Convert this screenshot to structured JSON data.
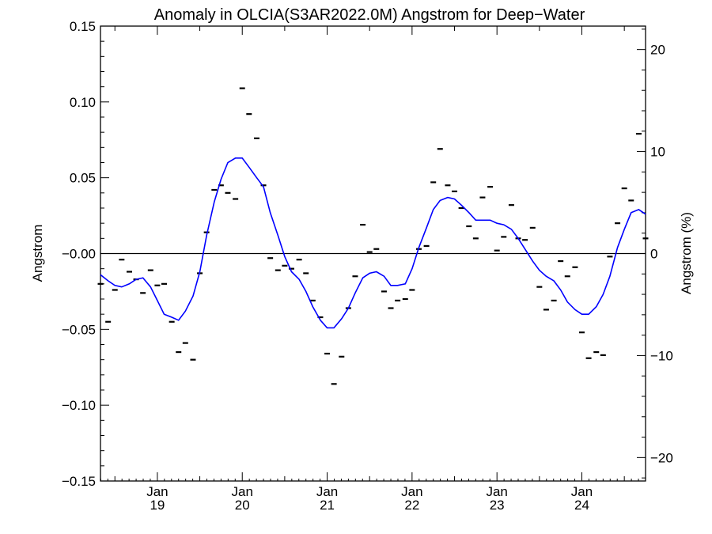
{
  "chart_data": {
    "type": "scatter",
    "title": "Anomaly in OLCIA(S3AR2022.0M) Angstrom for Deep−Water",
    "ylabel": "Angstrom",
    "ylabel_right": "Angstrom (%)",
    "xlim": [
      2018.33,
      2024.75
    ],
    "ylim": [
      -0.15,
      0.15
    ],
    "ylim_right": [
      -22.3,
      22.3
    ],
    "yticks": [
      {
        "value": 0.15,
        "label": "0.15"
      },
      {
        "value": 0.1,
        "label": "0.10"
      },
      {
        "value": 0.05,
        "label": "0.05"
      },
      {
        "value": 0.0,
        "label": "−0.00"
      },
      {
        "value": -0.05,
        "label": "−0.05"
      },
      {
        "value": -0.1,
        "label": "−0.10"
      },
      {
        "value": -0.15,
        "label": "−0.15"
      }
    ],
    "yticks_right": [
      {
        "value": 20,
        "label": "20"
      },
      {
        "value": 10,
        "label": "10"
      },
      {
        "value": 0,
        "label": "0"
      },
      {
        "value": -10,
        "label": "−10"
      },
      {
        "value": -20,
        "label": "−20"
      }
    ],
    "xticks": [
      {
        "value": 2019.0,
        "month": "Jan",
        "year": "19"
      },
      {
        "value": 2020.0,
        "month": "Jan",
        "year": "20"
      },
      {
        "value": 2021.0,
        "month": "Jan",
        "year": "21"
      },
      {
        "value": 2022.0,
        "month": "Jan",
        "year": "22"
      },
      {
        "value": 2023.0,
        "month": "Jan",
        "year": "23"
      },
      {
        "value": 2024.0,
        "month": "Jan",
        "year": "24"
      }
    ],
    "zero_line": 0,
    "monthly_points": {
      "x": [
        2018.33,
        2018.42,
        2018.5,
        2018.58,
        2018.67,
        2018.75,
        2018.83,
        2018.92,
        2019.0,
        2019.08,
        2019.17,
        2019.25,
        2019.33,
        2019.42,
        2019.5,
        2019.58,
        2019.67,
        2019.75,
        2019.83,
        2019.92,
        2020.0,
        2020.08,
        2020.17,
        2020.25,
        2020.33,
        2020.42,
        2020.5,
        2020.58,
        2020.67,
        2020.75,
        2020.83,
        2020.92,
        2021.0,
        2021.08,
        2021.17,
        2021.25,
        2021.33,
        2021.42,
        2021.5,
        2021.58,
        2021.67,
        2021.75,
        2021.83,
        2021.92,
        2022.0,
        2022.08,
        2022.17,
        2022.25,
        2022.33,
        2022.42,
        2022.5,
        2022.58,
        2022.67,
        2022.75,
        2022.83,
        2022.92,
        2023.0,
        2023.08,
        2023.17,
        2023.25,
        2023.33,
        2023.42,
        2023.5,
        2023.58,
        2023.67,
        2023.75,
        2023.83,
        2023.92,
        2024.0,
        2024.08,
        2024.17,
        2024.25,
        2024.33,
        2024.42,
        2024.5,
        2024.58,
        2024.67,
        2024.75
      ],
      "y": [
        -0.02,
        -0.045,
        -0.024,
        -0.004,
        -0.012,
        -0.017,
        -0.026,
        -0.011,
        -0.021,
        -0.02,
        -0.045,
        -0.065,
        -0.059,
        -0.07,
        -0.013,
        0.014,
        0.042,
        0.045,
        0.04,
        0.036,
        0.109,
        0.092,
        0.076,
        0.045,
        -0.003,
        -0.011,
        -0.008,
        -0.01,
        -0.004,
        -0.013,
        -0.031,
        -0.042,
        -0.066,
        -0.086,
        -0.068,
        -0.036,
        -0.015,
        0.019,
        0.001,
        0.003,
        -0.025,
        -0.036,
        -0.031,
        -0.03,
        -0.024,
        0.003,
        0.005,
        0.047,
        0.069,
        0.045,
        0.041,
        0.03,
        0.018,
        0.01,
        0.037,
        0.044,
        0.002,
        0.011,
        0.032,
        0.01,
        0.009,
        0.017,
        -0.022,
        -0.037,
        -0.031,
        -0.005,
        -0.015,
        -0.009,
        -0.052,
        -0.069,
        -0.065,
        -0.067,
        -0.002,
        0.02,
        0.043,
        0.035,
        0.079,
        0.01
      ]
    },
    "series": [
      {
        "x": [
          2018.33,
          2018.42,
          2018.5,
          2018.58,
          2018.67,
          2018.75,
          2018.83,
          2018.92,
          2019.0,
          2019.08,
          2019.17,
          2019.25,
          2019.33,
          2019.42,
          2019.5,
          2019.58,
          2019.67,
          2019.75,
          2019.83,
          2019.92,
          2020.0,
          2020.08,
          2020.17,
          2020.25,
          2020.33,
          2020.42,
          2020.5,
          2020.58,
          2020.67,
          2020.75,
          2020.83,
          2020.92,
          2021.0,
          2021.08,
          2021.17,
          2021.25,
          2021.33,
          2021.42,
          2021.5,
          2021.58,
          2021.67,
          2021.75,
          2021.83,
          2021.92,
          2022.0,
          2022.08,
          2022.17,
          2022.25,
          2022.33,
          2022.42,
          2022.5,
          2022.58,
          2022.67,
          2022.75,
          2022.83,
          2022.92,
          2023.0,
          2023.08,
          2023.17,
          2023.25,
          2023.33,
          2023.42,
          2023.5,
          2023.58,
          2023.67,
          2023.75,
          2023.83,
          2023.92,
          2024.0,
          2024.08,
          2024.17,
          2024.25,
          2024.33,
          2024.42,
          2024.5,
          2024.58,
          2024.67,
          2024.75
        ],
        "y": [
          -0.014,
          -0.018,
          -0.021,
          -0.022,
          -0.02,
          -0.017,
          -0.016,
          -0.022,
          -0.031,
          -0.04,
          -0.042,
          -0.044,
          -0.038,
          -0.028,
          -0.012,
          0.012,
          0.034,
          0.049,
          0.06,
          0.063,
          0.063,
          0.057,
          0.05,
          0.044,
          0.027,
          0.012,
          -0.002,
          -0.012,
          -0.017,
          -0.025,
          -0.035,
          -0.044,
          -0.049,
          -0.049,
          -0.043,
          -0.036,
          -0.026,
          -0.016,
          -0.013,
          -0.012,
          -0.015,
          -0.021,
          -0.021,
          -0.02,
          -0.01,
          0.004,
          0.017,
          0.029,
          0.035,
          0.037,
          0.036,
          0.032,
          0.027,
          0.022,
          0.022,
          0.022,
          0.02,
          0.019,
          0.016,
          0.01,
          0.003,
          -0.005,
          -0.011,
          -0.015,
          -0.018,
          -0.024,
          -0.032,
          -0.037,
          -0.04,
          -0.04,
          -0.035,
          -0.027,
          -0.015,
          0.004,
          0.016,
          0.027,
          0.029,
          0.026
        ]
      }
    ],
    "colors": {
      "line": "#0000ff",
      "points": "#000000",
      "axes": "#000000"
    }
  }
}
